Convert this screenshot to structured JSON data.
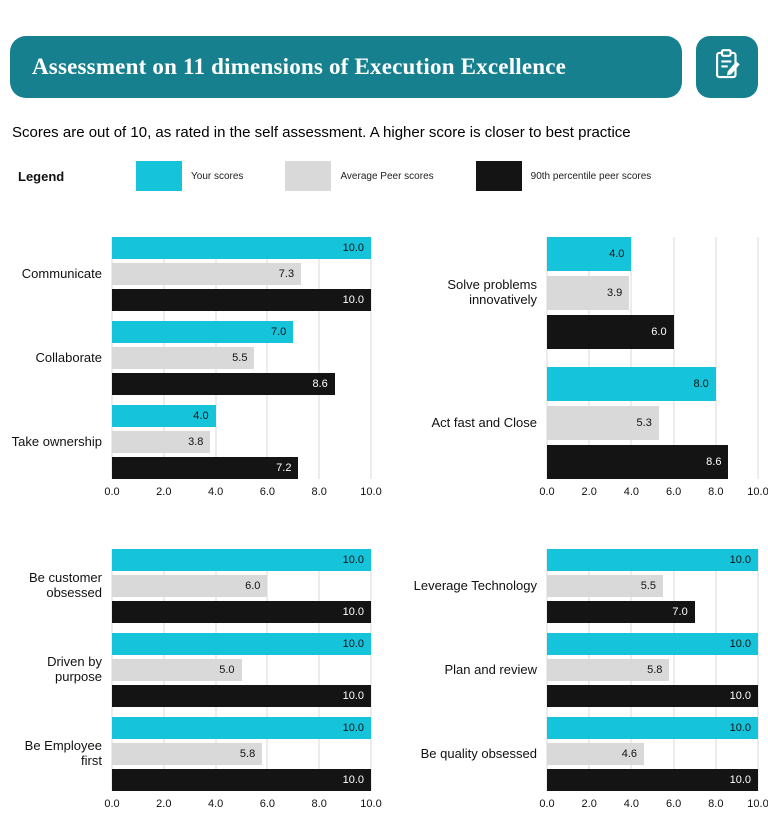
{
  "header": {
    "title": "Assessment on 11 dimensions of Execution Excellence",
    "icon": "clipboard-pencil-icon"
  },
  "subtitle": "Scores are out of 10, as rated in the self assessment. A higher score is closer to best practice",
  "legend": {
    "title": "Legend",
    "items": [
      {
        "label": "Your scores",
        "color": "#15c4da"
      },
      {
        "label": "Average Peer scores",
        "color": "#d9d9d9"
      },
      {
        "label": "90th percentile peer scores",
        "color": "#141414"
      }
    ]
  },
  "colors": {
    "banner": "#17808e",
    "your_scores": "#15c4da",
    "average_peer": "#d9d9d9",
    "p90_peer": "#141414",
    "gridline": "#d9d9d9"
  },
  "chart_data": [
    {
      "type": "bar",
      "orientation": "horizontal",
      "categories": [
        "Communicate",
        "Collaborate",
        "Take ownership"
      ],
      "series": [
        {
          "name": "Your scores",
          "color": "#15c4da",
          "value_color": "#111111",
          "values": [
            10.0,
            7.0,
            4.0
          ]
        },
        {
          "name": "Average Peer scores",
          "color": "#d9d9d9",
          "value_color": "#111111",
          "values": [
            7.3,
            5.5,
            3.8
          ]
        },
        {
          "name": "90th percentile peer scores",
          "color": "#141414",
          "value_color": "#ffffff",
          "values": [
            10.0,
            8.6,
            7.2
          ]
        }
      ],
      "xlim": [
        0,
        10
      ],
      "xticks": [
        "0.0",
        "2.0",
        "4.0",
        "6.0",
        "8.0",
        "10.0"
      ],
      "grid": true
    },
    {
      "type": "bar",
      "orientation": "horizontal",
      "categories": [
        "Solve problems innovatively",
        "Act fast and Close"
      ],
      "series": [
        {
          "name": "Your scores",
          "color": "#15c4da",
          "value_color": "#111111",
          "values": [
            4.0,
            8.0
          ]
        },
        {
          "name": "Average Peer scores",
          "color": "#d9d9d9",
          "value_color": "#111111",
          "values": [
            3.9,
            5.3
          ]
        },
        {
          "name": "90th percentile peer scores",
          "color": "#141414",
          "value_color": "#ffffff",
          "values": [
            6.0,
            8.6
          ]
        }
      ],
      "xlim": [
        0,
        10
      ],
      "xticks": [
        "0.0",
        "2.0",
        "4.0",
        "6.0",
        "8.0",
        "10.0"
      ],
      "grid": true
    },
    {
      "type": "bar",
      "orientation": "horizontal",
      "categories": [
        "Be customer obsessed",
        "Driven by purpose",
        "Be Employee first"
      ],
      "series": [
        {
          "name": "Your scores",
          "color": "#15c4da",
          "value_color": "#111111",
          "values": [
            10.0,
            10.0,
            10.0
          ]
        },
        {
          "name": "Average Peer scores",
          "color": "#d9d9d9",
          "value_color": "#111111",
          "values": [
            6.0,
            5.0,
            5.8
          ]
        },
        {
          "name": "90th percentile peer scores",
          "color": "#141414",
          "value_color": "#ffffff",
          "values": [
            10.0,
            10.0,
            10.0
          ]
        }
      ],
      "xlim": [
        0,
        10
      ],
      "xticks": [
        "0.0",
        "2.0",
        "4.0",
        "6.0",
        "8.0",
        "10.0"
      ],
      "grid": true
    },
    {
      "type": "bar",
      "orientation": "horizontal",
      "categories": [
        "Leverage Technology",
        "Plan and review",
        "Be quality obsessed"
      ],
      "series": [
        {
          "name": "Your scores",
          "color": "#15c4da",
          "value_color": "#111111",
          "values": [
            10.0,
            10.0,
            10.0
          ]
        },
        {
          "name": "Average Peer scores",
          "color": "#d9d9d9",
          "value_color": "#111111",
          "values": [
            5.5,
            5.8,
            4.6
          ]
        },
        {
          "name": "90th percentile peer scores",
          "color": "#141414",
          "value_color": "#ffffff",
          "values": [
            7.0,
            10.0,
            10.0
          ]
        }
      ],
      "xlim": [
        0,
        10
      ],
      "xticks": [
        "0.0",
        "2.0",
        "4.0",
        "6.0",
        "8.0",
        "10.0"
      ],
      "grid": true
    }
  ]
}
